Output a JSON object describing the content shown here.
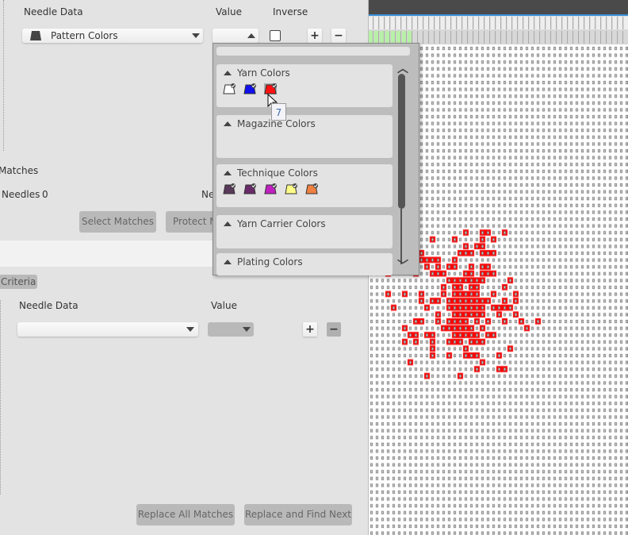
{
  "criteria_top": {
    "needle_data_label": "Needle Data",
    "value_label": "Value",
    "inverse_label": "Inverse",
    "needle_data_value": "Pattern Colors",
    "add": "+",
    "remove": "−",
    "inverse_checked": false
  },
  "matches": {
    "title": "Matches",
    "needles_label": "Needles",
    "needles_count": "0",
    "needles_label_2": "Needles",
    "select_matches": "Select Matches",
    "protect_matches": "Protect Matches"
  },
  "criteria_bottom": {
    "tab": "Criteria",
    "needle_data_label": "Needle Data",
    "value_label": "Value",
    "needle_data_value": "",
    "add": "+",
    "remove": "−",
    "replace_all": "Replace All Matches",
    "replace_find_next": "Replace and Find Next"
  },
  "popup": {
    "sections": [
      {
        "title": "Yarn Colors",
        "icons": [
          {
            "name": "yarn-white",
            "color": "#ffffff"
          },
          {
            "name": "yarn-blue",
            "color": "#1010ee"
          },
          {
            "name": "yarn-red",
            "color": "#ff1010"
          }
        ]
      },
      {
        "title": "Magazine Colors",
        "icons": []
      },
      {
        "title": "Technique Colors",
        "icons": [
          {
            "name": "technique-1",
            "color": "#5a3a5a"
          },
          {
            "name": "technique-2",
            "color": "#6a2a6a"
          },
          {
            "name": "technique-3",
            "color": "#c020c0"
          },
          {
            "name": "technique-4",
            "color": "#ffff88"
          },
          {
            "name": "technique-5",
            "color": "#f08040"
          }
        ]
      },
      {
        "title": "Yarn Carrier Colors",
        "icons": []
      },
      {
        "title": "Plating Colors",
        "icons": []
      }
    ],
    "tooltip": "7"
  },
  "pattern": {
    "stitch_color": "#ff0000",
    "background": "#ffffff",
    "ruler_highlight": "#b8f0a8"
  }
}
